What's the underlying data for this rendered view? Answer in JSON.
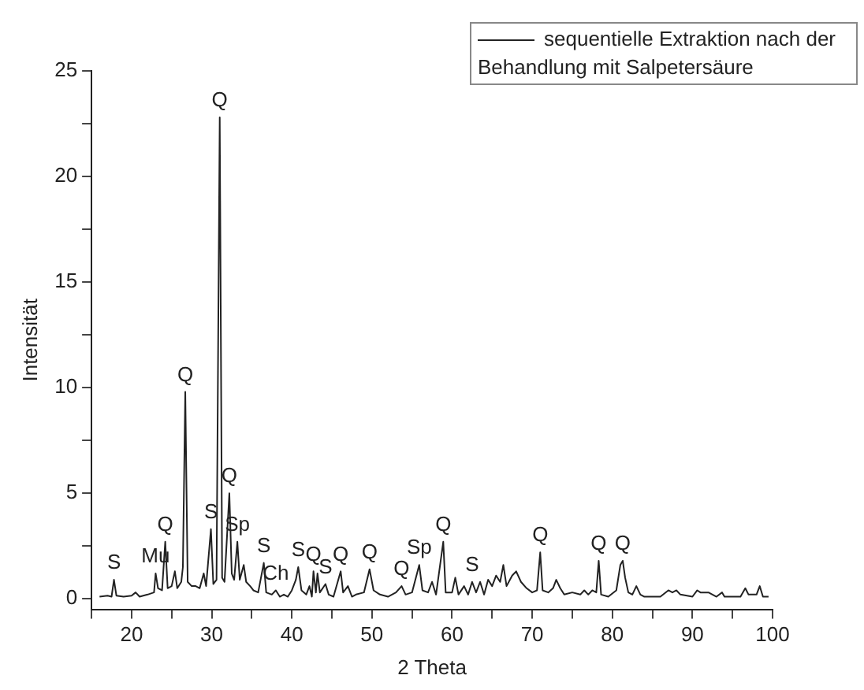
{
  "chart_data": {
    "type": "line",
    "xlabel": "2 Theta",
    "ylabel": "Intensität",
    "legend": "top right",
    "marker": "none",
    "line_style": "solid",
    "grid": false,
    "xlim": [
      15,
      100
    ],
    "xticks": [
      {
        "value": 15,
        "label": null
      },
      20,
      {
        "value": 25,
        "label": null
      },
      30,
      {
        "value": 35,
        "label": null
      },
      40,
      {
        "value": 45,
        "label": null
      },
      50,
      {
        "value": 55,
        "label": null
      },
      60,
      {
        "value": 65,
        "label": null
      },
      70,
      {
        "value": 75,
        "label": null
      },
      80,
      {
        "value": 85,
        "label": null
      },
      90,
      {
        "value": 95,
        "label": null
      },
      100
    ],
    "ylim": [
      -0.5,
      25
    ],
    "yticks": [
      0,
      {
        "value": 2.5,
        "label": null
      },
      5,
      {
        "value": 7.5,
        "label": null
      },
      10,
      {
        "value": 12.5,
        "label": null
      },
      15,
      {
        "value": 17.5,
        "label": null
      },
      20,
      {
        "value": 22.5,
        "label": null
      },
      25
    ],
    "series": [
      {
        "name": "sequentielle Extraktion nach der Behandlung mit Salpetersäure",
        "color": "#222222",
        "x": [
          16,
          17,
          17.5,
          17.8,
          18.1,
          19,
          20,
          20.5,
          21,
          22,
          22.8,
          23,
          23.3,
          23.8,
          24.2,
          24.5,
          25,
          25.4,
          25.7,
          26.2,
          26.4,
          26.7,
          27,
          27.5,
          28,
          28.5,
          29,
          29.3,
          29.9,
          30.2,
          30.6,
          31,
          31.3,
          31.6,
          32.2,
          32.5,
          32.8,
          33.2,
          33.5,
          34,
          34.3,
          34.8,
          35.2,
          35.8,
          36.5,
          36.8,
          37.5,
          38,
          38.5,
          39,
          39.5,
          40,
          40.5,
          40.8,
          41.2,
          41.8,
          42.2,
          42.5,
          42.7,
          43,
          43.2,
          43.5,
          44.2,
          44.6,
          45.2,
          46.1,
          46.4,
          47,
          47.5,
          48,
          49,
          49.7,
          50.2,
          51,
          52,
          53,
          53.7,
          54.2,
          55,
          55.9,
          56.3,
          57,
          57.5,
          58,
          58.9,
          59.2,
          60,
          60.4,
          60.8,
          61.5,
          62,
          62.5,
          63,
          63.5,
          64,
          64.5,
          65,
          65.5,
          66,
          66.4,
          66.8,
          67.5,
          68,
          68.6,
          69.3,
          70,
          70.6,
          71,
          71.3,
          72,
          72.6,
          73,
          73.5,
          74,
          75,
          76,
          76.5,
          77,
          77.5,
          78,
          78.3,
          78.6,
          79.5,
          80.5,
          81,
          81.3,
          81.6,
          82,
          82.5,
          83,
          83.5,
          84,
          86,
          87,
          87.5,
          88,
          88.5,
          90,
          90.6,
          91,
          92,
          93,
          93.7,
          94,
          95,
          96,
          96.6,
          97,
          98,
          98.4,
          98.8,
          99.5
        ],
        "values": [
          0.1,
          0.15,
          0.1,
          0.9,
          0.15,
          0.1,
          0.15,
          0.3,
          0.1,
          0.2,
          0.3,
          1.2,
          0.5,
          0.4,
          2.7,
          0.5,
          0.6,
          1.3,
          0.5,
          0.8,
          1.5,
          9.8,
          0.8,
          0.6,
          0.6,
          0.5,
          1.2,
          0.6,
          3.3,
          0.7,
          0.9,
          22.8,
          1.0,
          0.8,
          5.0,
          1.2,
          0.9,
          2.7,
          0.9,
          1.6,
          0.8,
          0.6,
          0.4,
          0.3,
          1.7,
          0.3,
          0.2,
          0.4,
          0.1,
          0.2,
          0.1,
          0.4,
          0.9,
          1.5,
          0.4,
          0.2,
          0.6,
          0.1,
          1.3,
          0.3,
          1.2,
          0.3,
          0.7,
          0.2,
          0.1,
          1.3,
          0.3,
          0.6,
          0.1,
          0.2,
          0.3,
          1.4,
          0.4,
          0.2,
          0.1,
          0.3,
          0.6,
          0.2,
          0.3,
          1.6,
          0.4,
          0.3,
          0.8,
          0.2,
          2.7,
          0.3,
          0.3,
          1.0,
          0.2,
          0.6,
          0.2,
          0.8,
          0.3,
          0.8,
          0.2,
          0.9,
          0.6,
          1.1,
          0.8,
          1.6,
          0.6,
          1.1,
          1.3,
          0.8,
          0.5,
          0.3,
          0.4,
          2.2,
          0.4,
          0.3,
          0.5,
          0.9,
          0.5,
          0.2,
          0.3,
          0.2,
          0.4,
          0.2,
          0.4,
          0.3,
          1.8,
          0.2,
          0.1,
          0.4,
          1.6,
          1.8,
          1.0,
          0.3,
          0.2,
          0.6,
          0.2,
          0.1,
          0.1,
          0.4,
          0.3,
          0.4,
          0.2,
          0.1,
          0.4,
          0.3,
          0.3,
          0.1,
          0.3,
          0.1,
          0.1,
          0.1,
          0.5,
          0.2,
          0.2,
          0.6,
          0.1,
          0.1
        ]
      }
    ],
    "annotations": [
      {
        "text": "S",
        "x": 17.8,
        "y": 0.9
      },
      {
        "text": "Mu",
        "x": 23,
        "y": 1.2
      },
      {
        "text": "Q",
        "x": 24.2,
        "y": 2.7
      },
      {
        "text": "Q",
        "x": 26.7,
        "y": 9.8
      },
      {
        "text": "S",
        "x": 29.9,
        "y": 3.3
      },
      {
        "text": "Q",
        "x": 31,
        "y": 22.8
      },
      {
        "text": "Q",
        "x": 32.2,
        "y": 5.0
      },
      {
        "text": "Sp",
        "x": 33.2,
        "y": 2.7
      },
      {
        "text": "S",
        "x": 36.5,
        "y": 1.7
      },
      {
        "text": "Ch",
        "x": 38,
        "y": 0.4
      },
      {
        "text": "S",
        "x": 40.8,
        "y": 1.5
      },
      {
        "text": "Q",
        "x": 42.7,
        "y": 1.3
      },
      {
        "text": "S",
        "x": 44.2,
        "y": 0.7
      },
      {
        "text": "Q",
        "x": 46.1,
        "y": 1.3
      },
      {
        "text": "Q",
        "x": 49.7,
        "y": 1.4
      },
      {
        "text": "Q",
        "x": 53.7,
        "y": 0.6
      },
      {
        "text": "Sp",
        "x": 55.9,
        "y": 1.6
      },
      {
        "text": "Q",
        "x": 58.9,
        "y": 2.7
      },
      {
        "text": "S",
        "x": 62.5,
        "y": 0.8
      },
      {
        "text": "Q",
        "x": 71,
        "y": 2.2
      },
      {
        "text": "Q",
        "x": 78.3,
        "y": 1.8
      },
      {
        "text": "Q",
        "x": 81.3,
        "y": 1.8
      }
    ]
  }
}
